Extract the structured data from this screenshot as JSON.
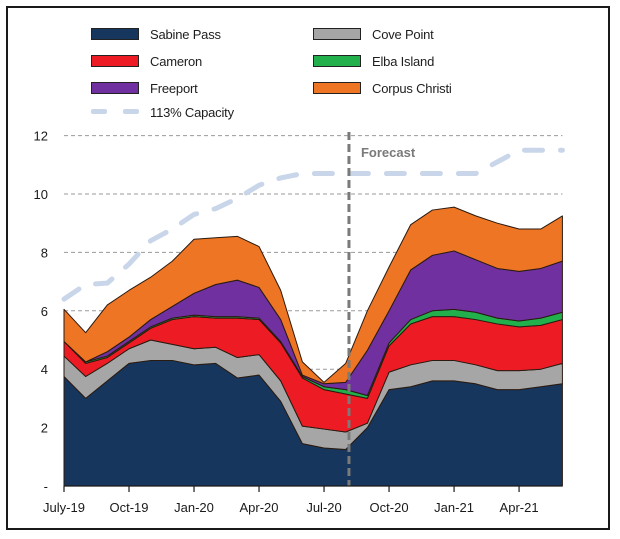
{
  "chart_data": {
    "type": "area",
    "stacked": true,
    "title": "",
    "xlabel": "",
    "ylabel": "",
    "ylim": [
      0,
      12
    ],
    "yticks": [
      0,
      2,
      4,
      6,
      8,
      10,
      12
    ],
    "ytick_labels": [
      "-",
      "2",
      "4",
      "6",
      "8",
      "10",
      "12"
    ],
    "grid": "horizontal dashed",
    "x": [
      "Jul-19",
      "Aug-19",
      "Sep-19",
      "Oct-19",
      "Nov-19",
      "Dec-19",
      "Jan-20",
      "Feb-20",
      "Mar-20",
      "Apr-20",
      "May-20",
      "Jun-20",
      "Jul-20",
      "Aug-20",
      "Sep-20",
      "Oct-20",
      "Nov-20",
      "Dec-20",
      "Jan-21",
      "Feb-21",
      "Mar-21",
      "Apr-21",
      "May-21",
      "Jun-21"
    ],
    "xtick_labels": [
      {
        "month_index": 0,
        "label": "July-19"
      },
      {
        "month_index": 3,
        "label": "Oct-19"
      },
      {
        "month_index": 6,
        "label": "Jan-20"
      },
      {
        "month_index": 9,
        "label": "Apr-20"
      },
      {
        "month_index": 12,
        "label": "Jul-20"
      },
      {
        "month_index": 15,
        "label": "Oct-20"
      },
      {
        "month_index": 18,
        "label": "Jan-21"
      },
      {
        "month_index": 21,
        "label": "Apr-21"
      }
    ],
    "series": [
      {
        "name": "Sabine Pass",
        "color": "#17365d",
        "values": [
          3.75,
          3.0,
          3.6,
          4.2,
          4.3,
          4.3,
          4.15,
          4.2,
          3.7,
          3.8,
          2.9,
          1.45,
          1.3,
          1.25,
          2.0,
          3.3,
          3.4,
          3.6,
          3.6,
          3.5,
          3.3,
          3.3,
          3.4,
          3.5
        ]
      },
      {
        "name": "Cove Point",
        "color": "#a6a6a6",
        "values": [
          0.7,
          0.75,
          0.6,
          0.5,
          0.7,
          0.55,
          0.55,
          0.55,
          0.7,
          0.7,
          0.7,
          0.6,
          0.65,
          0.6,
          0.15,
          0.6,
          0.75,
          0.7,
          0.7,
          0.65,
          0.65,
          0.65,
          0.6,
          0.7
        ]
      },
      {
        "name": "Cameron",
        "color": "#ed1c24",
        "values": [
          0.5,
          0.45,
          0.2,
          0.2,
          0.4,
          0.85,
          1.1,
          1.0,
          1.35,
          1.2,
          1.3,
          1.65,
          1.35,
          1.3,
          0.85,
          0.9,
          1.4,
          1.5,
          1.5,
          1.55,
          1.6,
          1.5,
          1.5,
          1.5
        ]
      },
      {
        "name": "Elba Island",
        "color": "#21b04b",
        "values": [
          0.0,
          0.05,
          0.05,
          0.05,
          0.05,
          0.05,
          0.05,
          0.05,
          0.05,
          0.05,
          0.05,
          0.05,
          0.1,
          0.15,
          0.1,
          0.1,
          0.15,
          0.2,
          0.25,
          0.25,
          0.2,
          0.2,
          0.25,
          0.25
        ]
      },
      {
        "name": "Freeport",
        "color": "#7030a0",
        "values": [
          0.0,
          0.0,
          0.15,
          0.15,
          0.25,
          0.4,
          0.75,
          1.1,
          1.25,
          1.05,
          0.75,
          0.05,
          0.1,
          0.25,
          1.55,
          1.1,
          1.7,
          1.9,
          2.0,
          1.8,
          1.7,
          1.7,
          1.7,
          1.75
        ]
      },
      {
        "name": "Corpus Christi",
        "color": "#ed7524",
        "values": [
          1.1,
          1.0,
          1.6,
          1.6,
          1.45,
          1.55,
          1.85,
          1.6,
          1.5,
          1.4,
          1.0,
          0.45,
          0.05,
          0.65,
          1.35,
          1.5,
          1.55,
          1.55,
          1.5,
          1.5,
          1.55,
          1.45,
          1.35,
          1.55
        ]
      }
    ],
    "capacity_line": {
      "name": "113% Capacity",
      "color": "#c9d6ea",
      "style": "dashed",
      "values": [
        6.4,
        6.9,
        6.95,
        7.6,
        8.4,
        8.8,
        9.3,
        9.5,
        9.85,
        10.3,
        10.55,
        10.7,
        10.7,
        10.7,
        10.7,
        10.7,
        10.7,
        10.7,
        10.7,
        10.7,
        11.1,
        11.5,
        11.5,
        11.5
      ]
    },
    "forecast_marker": {
      "month_index": 13.15,
      "label": "Forecast"
    },
    "legend": {
      "placement": "top",
      "columns": 2
    }
  }
}
